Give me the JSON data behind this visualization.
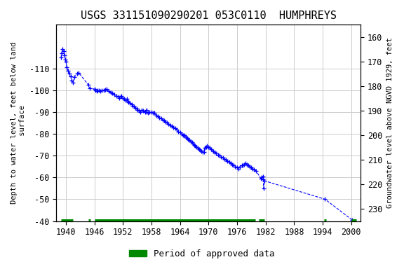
{
  "title": "USGS 331151090290201 053C0110  HUMPHREYS",
  "ylabel_left": "Depth to water level, feet below land\n surface",
  "ylabel_right": "Groundwater level above NGVD 1929, feet",
  "xlim": [
    1938,
    2002
  ],
  "ylim_left": [
    -40,
    -130
  ],
  "ylim_right": [
    235,
    155
  ],
  "xticks": [
    1940,
    1946,
    1952,
    1958,
    1964,
    1970,
    1976,
    1982,
    1988,
    1994,
    2000
  ],
  "yticks_left": [
    -110,
    -100,
    -90,
    -80,
    -70,
    -60,
    -50,
    -40
  ],
  "yticks_right": [
    230,
    220,
    210,
    200,
    190,
    180,
    170,
    160
  ],
  "grid_color": "#cccccc",
  "line_color": "#0000ff",
  "marker_color": "#0000ff",
  "approved_color": "#008800",
  "background_color": "#ffffff",
  "title_fontsize": 11,
  "data_points": [
    [
      1939.0,
      -115.0
    ],
    [
      1939.1,
      -117.0
    ],
    [
      1939.3,
      -119.0
    ],
    [
      1939.5,
      -118.0
    ],
    [
      1939.7,
      -116.0
    ],
    [
      1939.9,
      -114.0
    ],
    [
      1940.0,
      -113.0
    ],
    [
      1940.2,
      -110.5
    ],
    [
      1940.4,
      -109.0
    ],
    [
      1940.7,
      -107.5
    ],
    [
      1941.0,
      -106.5
    ],
    [
      1941.2,
      -104.5
    ],
    [
      1941.5,
      -103.5
    ],
    [
      1941.8,
      -106.0
    ],
    [
      1942.3,
      -107.5
    ],
    [
      1942.7,
      -108.0
    ],
    [
      1944.7,
      -102.5
    ],
    [
      1945.0,
      -101.0
    ],
    [
      1946.0,
      -100.5
    ],
    [
      1946.2,
      -100.0
    ],
    [
      1946.5,
      -99.5
    ],
    [
      1946.7,
      -100.0
    ],
    [
      1947.0,
      -100.0
    ],
    [
      1947.3,
      -99.5
    ],
    [
      1947.6,
      -100.0
    ],
    [
      1948.0,
      -100.0
    ],
    [
      1948.3,
      -100.2
    ],
    [
      1948.6,
      -100.5
    ],
    [
      1949.0,
      -99.5
    ],
    [
      1949.4,
      -99.0
    ],
    [
      1949.8,
      -98.5
    ],
    [
      1950.2,
      -98.0
    ],
    [
      1950.6,
      -97.5
    ],
    [
      1951.0,
      -97.0
    ],
    [
      1951.2,
      -96.5
    ],
    [
      1951.5,
      -97.0
    ],
    [
      1951.7,
      -97.5
    ],
    [
      1952.0,
      -96.5
    ],
    [
      1952.2,
      -96.0
    ],
    [
      1952.5,
      -95.5
    ],
    [
      1952.8,
      -96.0
    ],
    [
      1953.0,
      -95.0
    ],
    [
      1953.2,
      -94.5
    ],
    [
      1953.5,
      -94.0
    ],
    [
      1953.8,
      -93.5
    ],
    [
      1954.0,
      -93.0
    ],
    [
      1954.3,
      -92.5
    ],
    [
      1954.6,
      -92.0
    ],
    [
      1954.9,
      -91.5
    ],
    [
      1955.0,
      -91.0
    ],
    [
      1955.3,
      -90.5
    ],
    [
      1955.6,
      -90.0
    ],
    [
      1956.0,
      -91.0
    ],
    [
      1956.3,
      -90.5
    ],
    [
      1956.6,
      -90.0
    ],
    [
      1956.9,
      -91.0
    ],
    [
      1957.0,
      -90.0
    ],
    [
      1957.3,
      -89.5
    ],
    [
      1957.6,
      -90.0
    ],
    [
      1958.0,
      -90.0
    ],
    [
      1958.3,
      -89.8
    ],
    [
      1958.6,
      -89.5
    ],
    [
      1959.0,
      -88.5
    ],
    [
      1959.3,
      -88.0
    ],
    [
      1959.6,
      -87.5
    ],
    [
      1960.0,
      -87.0
    ],
    [
      1960.3,
      -86.5
    ],
    [
      1960.6,
      -86.0
    ],
    [
      1961.0,
      -85.5
    ],
    [
      1961.3,
      -85.0
    ],
    [
      1961.6,
      -84.5
    ],
    [
      1962.0,
      -84.0
    ],
    [
      1962.3,
      -83.5
    ],
    [
      1962.6,
      -83.0
    ],
    [
      1963.0,
      -82.5
    ],
    [
      1963.3,
      -82.0
    ],
    [
      1963.6,
      -81.0
    ],
    [
      1964.0,
      -80.5
    ],
    [
      1964.3,
      -80.0
    ],
    [
      1964.6,
      -79.5
    ],
    [
      1964.9,
      -79.0
    ],
    [
      1965.0,
      -79.5
    ],
    [
      1965.2,
      -78.5
    ],
    [
      1965.5,
      -78.0
    ],
    [
      1965.7,
      -77.5
    ],
    [
      1966.0,
      -77.0
    ],
    [
      1966.2,
      -76.5
    ],
    [
      1966.5,
      -76.0
    ],
    [
      1966.7,
      -75.5
    ],
    [
      1967.0,
      -75.0
    ],
    [
      1967.2,
      -74.5
    ],
    [
      1967.5,
      -74.0
    ],
    [
      1967.7,
      -73.5
    ],
    [
      1968.0,
      -73.0
    ],
    [
      1968.2,
      -72.5
    ],
    [
      1968.5,
      -72.0
    ],
    [
      1968.7,
      -71.5
    ],
    [
      1969.0,
      -71.5
    ],
    [
      1969.2,
      -73.5
    ],
    [
      1969.5,
      -74.0
    ],
    [
      1969.7,
      -74.5
    ],
    [
      1970.0,
      -74.0
    ],
    [
      1970.3,
      -73.5
    ],
    [
      1970.6,
      -73.0
    ],
    [
      1971.0,
      -72.0
    ],
    [
      1971.3,
      -71.5
    ],
    [
      1971.6,
      -71.0
    ],
    [
      1972.0,
      -70.5
    ],
    [
      1972.3,
      -70.0
    ],
    [
      1972.6,
      -69.5
    ],
    [
      1973.0,
      -69.0
    ],
    [
      1973.3,
      -68.5
    ],
    [
      1973.6,
      -68.0
    ],
    [
      1974.0,
      -67.5
    ],
    [
      1974.3,
      -67.0
    ],
    [
      1974.6,
      -66.5
    ],
    [
      1975.0,
      -66.0
    ],
    [
      1975.3,
      -65.5
    ],
    [
      1975.6,
      -65.0
    ],
    [
      1976.0,
      -64.5
    ],
    [
      1976.3,
      -64.0
    ],
    [
      1976.6,
      -65.0
    ],
    [
      1977.0,
      -65.5
    ],
    [
      1977.2,
      -65.5
    ],
    [
      1977.5,
      -66.0
    ],
    [
      1977.8,
      -66.5
    ],
    [
      1978.0,
      -66.0
    ],
    [
      1978.3,
      -65.5
    ],
    [
      1978.6,
      -65.0
    ],
    [
      1978.9,
      -64.5
    ],
    [
      1979.2,
      -64.0
    ],
    [
      1979.6,
      -63.5
    ],
    [
      1980.0,
      -63.0
    ],
    [
      1981.0,
      -59.5
    ],
    [
      1981.2,
      -60.0
    ],
    [
      1981.4,
      -60.5
    ],
    [
      1981.5,
      -59.0
    ],
    [
      1981.6,
      -55.0
    ],
    [
      1981.7,
      -58.5
    ],
    [
      1994.5,
      -50.0
    ],
    [
      2000.2,
      -40.5
    ]
  ],
  "approved_segments": [
    {
      "start": 1939.0,
      "end": 1941.5
    },
    {
      "start": 1944.7,
      "end": 1945.2
    },
    {
      "start": 1946.0,
      "end": 1979.8
    },
    {
      "start": 1980.5,
      "end": 1981.8
    },
    {
      "start": 1994.3,
      "end": 1994.7
    },
    {
      "start": 2000.0,
      "end": 2001.0
    }
  ],
  "bar_y": -40,
  "legend_label": "Period of approved data"
}
